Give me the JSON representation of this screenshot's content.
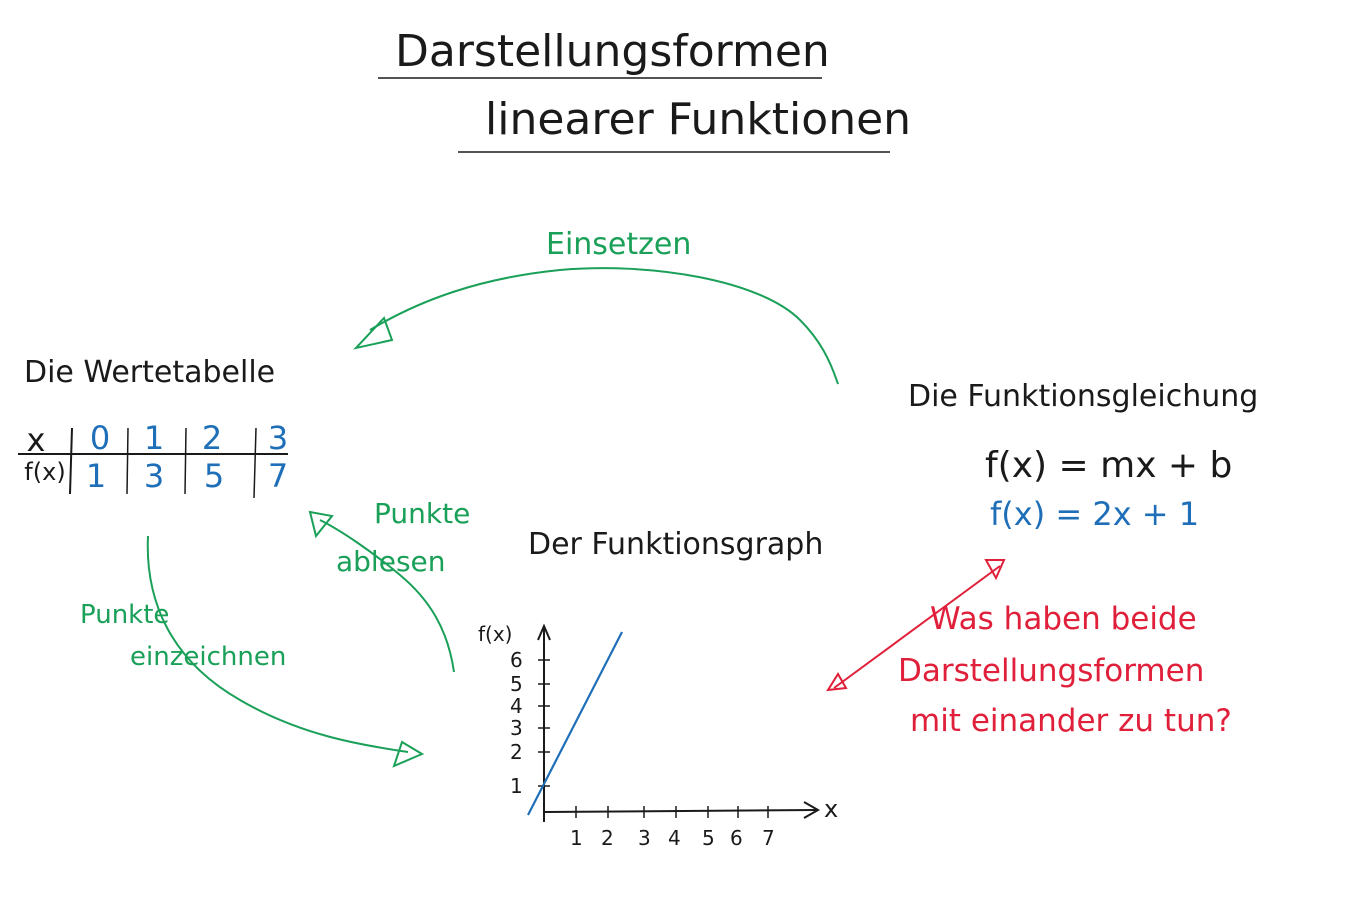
{
  "title": {
    "line1": "Darstellungsformen",
    "line2": "linearer Funktionen"
  },
  "table": {
    "heading": "Die Wertetabelle",
    "row_x_label": "x",
    "row_fx_label": "f(x)",
    "x_values": [
      "0",
      "1",
      "2",
      "3"
    ],
    "fx_values": [
      "1",
      "3",
      "5",
      "7"
    ]
  },
  "equation": {
    "heading": "Die Funktionsgleichung",
    "general": "f(x) = mx + b",
    "specific": "f(x) = 2x + 1"
  },
  "graph": {
    "heading": "Der Funktionsgraph",
    "y_axis_label": "f(x)",
    "x_axis_label": "x",
    "y_ticks": [
      "1",
      "2",
      "3",
      "4",
      "5",
      "6"
    ],
    "x_ticks": [
      "1",
      "2",
      "3",
      "4",
      "5",
      "6",
      "7"
    ]
  },
  "arrows": {
    "einsetzen": "Einsetzen",
    "punkte_ablesen_1": "Punkte",
    "punkte_ablesen_2": "ablesen",
    "punkte_einzeichnen_1": "Punkte",
    "punkte_einzeichnen_2": "einzeichnen"
  },
  "question": {
    "line1": "Was haben beide",
    "line2": "Darstellungsformen",
    "line3": "mit einander zu tun?"
  },
  "colors": {
    "ink": "#1a1a1a",
    "green": "#1aa058",
    "blue": "#1f6fb8",
    "red": "#e0203a"
  }
}
